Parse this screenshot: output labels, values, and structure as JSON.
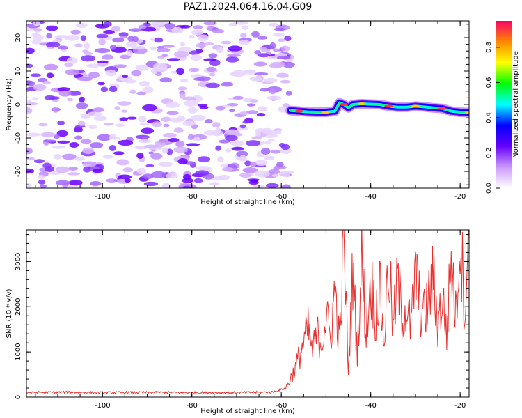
{
  "title": "PAZ1.2024.064.16.04.G09",
  "chart_data": [
    {
      "type": "heatmap",
      "xlabel": "Height of straight line (km)",
      "ylabel": "Frequency (Hz)",
      "xlim": [
        -117,
        -18
      ],
      "ylim": [
        -25,
        25
      ],
      "xticks": [
        -100,
        -80,
        -60,
        -40,
        -20
      ],
      "yticks": [
        -20,
        -10,
        0,
        10,
        20
      ],
      "xtick_labels": [
        "-100",
        "-80",
        "-60",
        "-40",
        "-20"
      ],
      "ytick_labels": [
        "-20",
        "-10",
        "0",
        "10",
        "20"
      ],
      "noise_region": {
        "x": [
          -117,
          -58
        ],
        "y": [
          -25,
          25
        ]
      },
      "signal_trace": [
        {
          "x": -58,
          "y": -1.8
        },
        {
          "x": -56,
          "y": -2.0
        },
        {
          "x": -54,
          "y": -2.2
        },
        {
          "x": -52,
          "y": -2.3
        },
        {
          "x": -50,
          "y": -2.3
        },
        {
          "x": -48,
          "y": -2.0
        },
        {
          "x": -47,
          "y": 0.5
        },
        {
          "x": -46,
          "y": 0.0
        },
        {
          "x": -45,
          "y": -1.0
        },
        {
          "x": -44,
          "y": 0.0
        },
        {
          "x": -42,
          "y": 0.2
        },
        {
          "x": -40,
          "y": 0.1
        },
        {
          "x": -38,
          "y": 0.0
        },
        {
          "x": -36,
          "y": -0.5
        },
        {
          "x": -34,
          "y": -0.8
        },
        {
          "x": -32,
          "y": -0.8
        },
        {
          "x": -30,
          "y": -0.5
        },
        {
          "x": -28,
          "y": -0.7
        },
        {
          "x": -26,
          "y": -1.0
        },
        {
          "x": -24,
          "y": -1.2
        },
        {
          "x": -22,
          "y": -2.0
        },
        {
          "x": -20,
          "y": -2.3
        },
        {
          "x": -18,
          "y": -2.4
        }
      ],
      "colorbar": {
        "label": "Normalized spectral amplitude",
        "range": [
          0,
          0.95
        ],
        "ticks": [
          0.0,
          0.2,
          0.4,
          0.6,
          0.8
        ],
        "tick_labels": [
          "0.0",
          "0.2",
          "0.4",
          "0.6",
          "0.8"
        ],
        "colormap": [
          "#ffffff",
          "#cc99ff",
          "#6600ff",
          "#0000ff",
          "#00ffff",
          "#00ff00",
          "#ffff00",
          "#ff8800",
          "#ff0066"
        ]
      }
    },
    {
      "type": "line",
      "xlabel": "Height of straight line (km)",
      "ylabel": "SNR (10 * v/v)",
      "xlim": [
        -117,
        -18
      ],
      "ylim": [
        0,
        3700
      ],
      "xticks": [
        -100,
        -80,
        -60,
        -40,
        -20
      ],
      "yticks": [
        0,
        1000,
        2000,
        3000
      ],
      "xtick_labels": [
        "-100",
        "-80",
        "-60",
        "-40",
        "-20"
      ],
      "ytick_labels": [
        "0",
        "1000",
        "2000",
        "3000"
      ],
      "color": "#e8302e",
      "series": [
        {
          "x": [
            -117,
            -110,
            -100,
            -90,
            -80,
            -70,
            -62,
            -59,
            -58,
            -57,
            -56,
            -55,
            -54,
            -53,
            -52,
            -51,
            -50,
            -49,
            -48,
            -47,
            -46,
            -45,
            -44,
            -43,
            -42,
            -41,
            -40,
            -39,
            -38,
            -37,
            -36,
            -35,
            -34,
            -33,
            -32,
            -31,
            -30,
            -29,
            -28,
            -27,
            -26,
            -25,
            -24,
            -23,
            -22,
            -21,
            -20,
            -19,
            -18
          ],
          "values": [
            100,
            110,
            100,
            105,
            100,
            100,
            110,
            200,
            400,
            600,
            900,
            1200,
            1500,
            1000,
            1400,
            1200,
            1800,
            1300,
            2400,
            1200,
            3400,
            600,
            2800,
            1000,
            3000,
            1400,
            2600,
            1800,
            2400,
            1200,
            3000,
            1500,
            2600,
            1800,
            2000,
            1500,
            2800,
            2000,
            1800,
            2200,
            2600,
            1600,
            2200,
            1400,
            3100,
            1800,
            3600,
            2000,
            3400
          ]
        }
      ]
    }
  ]
}
